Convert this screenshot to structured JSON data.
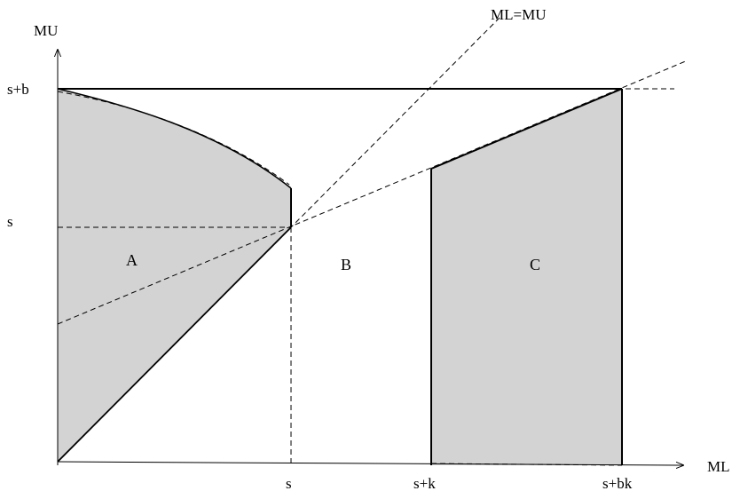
{
  "axes": {
    "y_label": "MU",
    "x_label": "ML"
  },
  "y_ticks": {
    "top": "s+b",
    "mid": "s"
  },
  "x_ticks": {
    "s": "s",
    "sk": "s+k",
    "sbk": "s+bk"
  },
  "lines": {
    "diagonal": "ML=MU"
  },
  "regions": {
    "a": "A",
    "b": "B",
    "c": "C"
  },
  "colors": {
    "fill": "#d3d3d3",
    "stroke": "#000000"
  }
}
